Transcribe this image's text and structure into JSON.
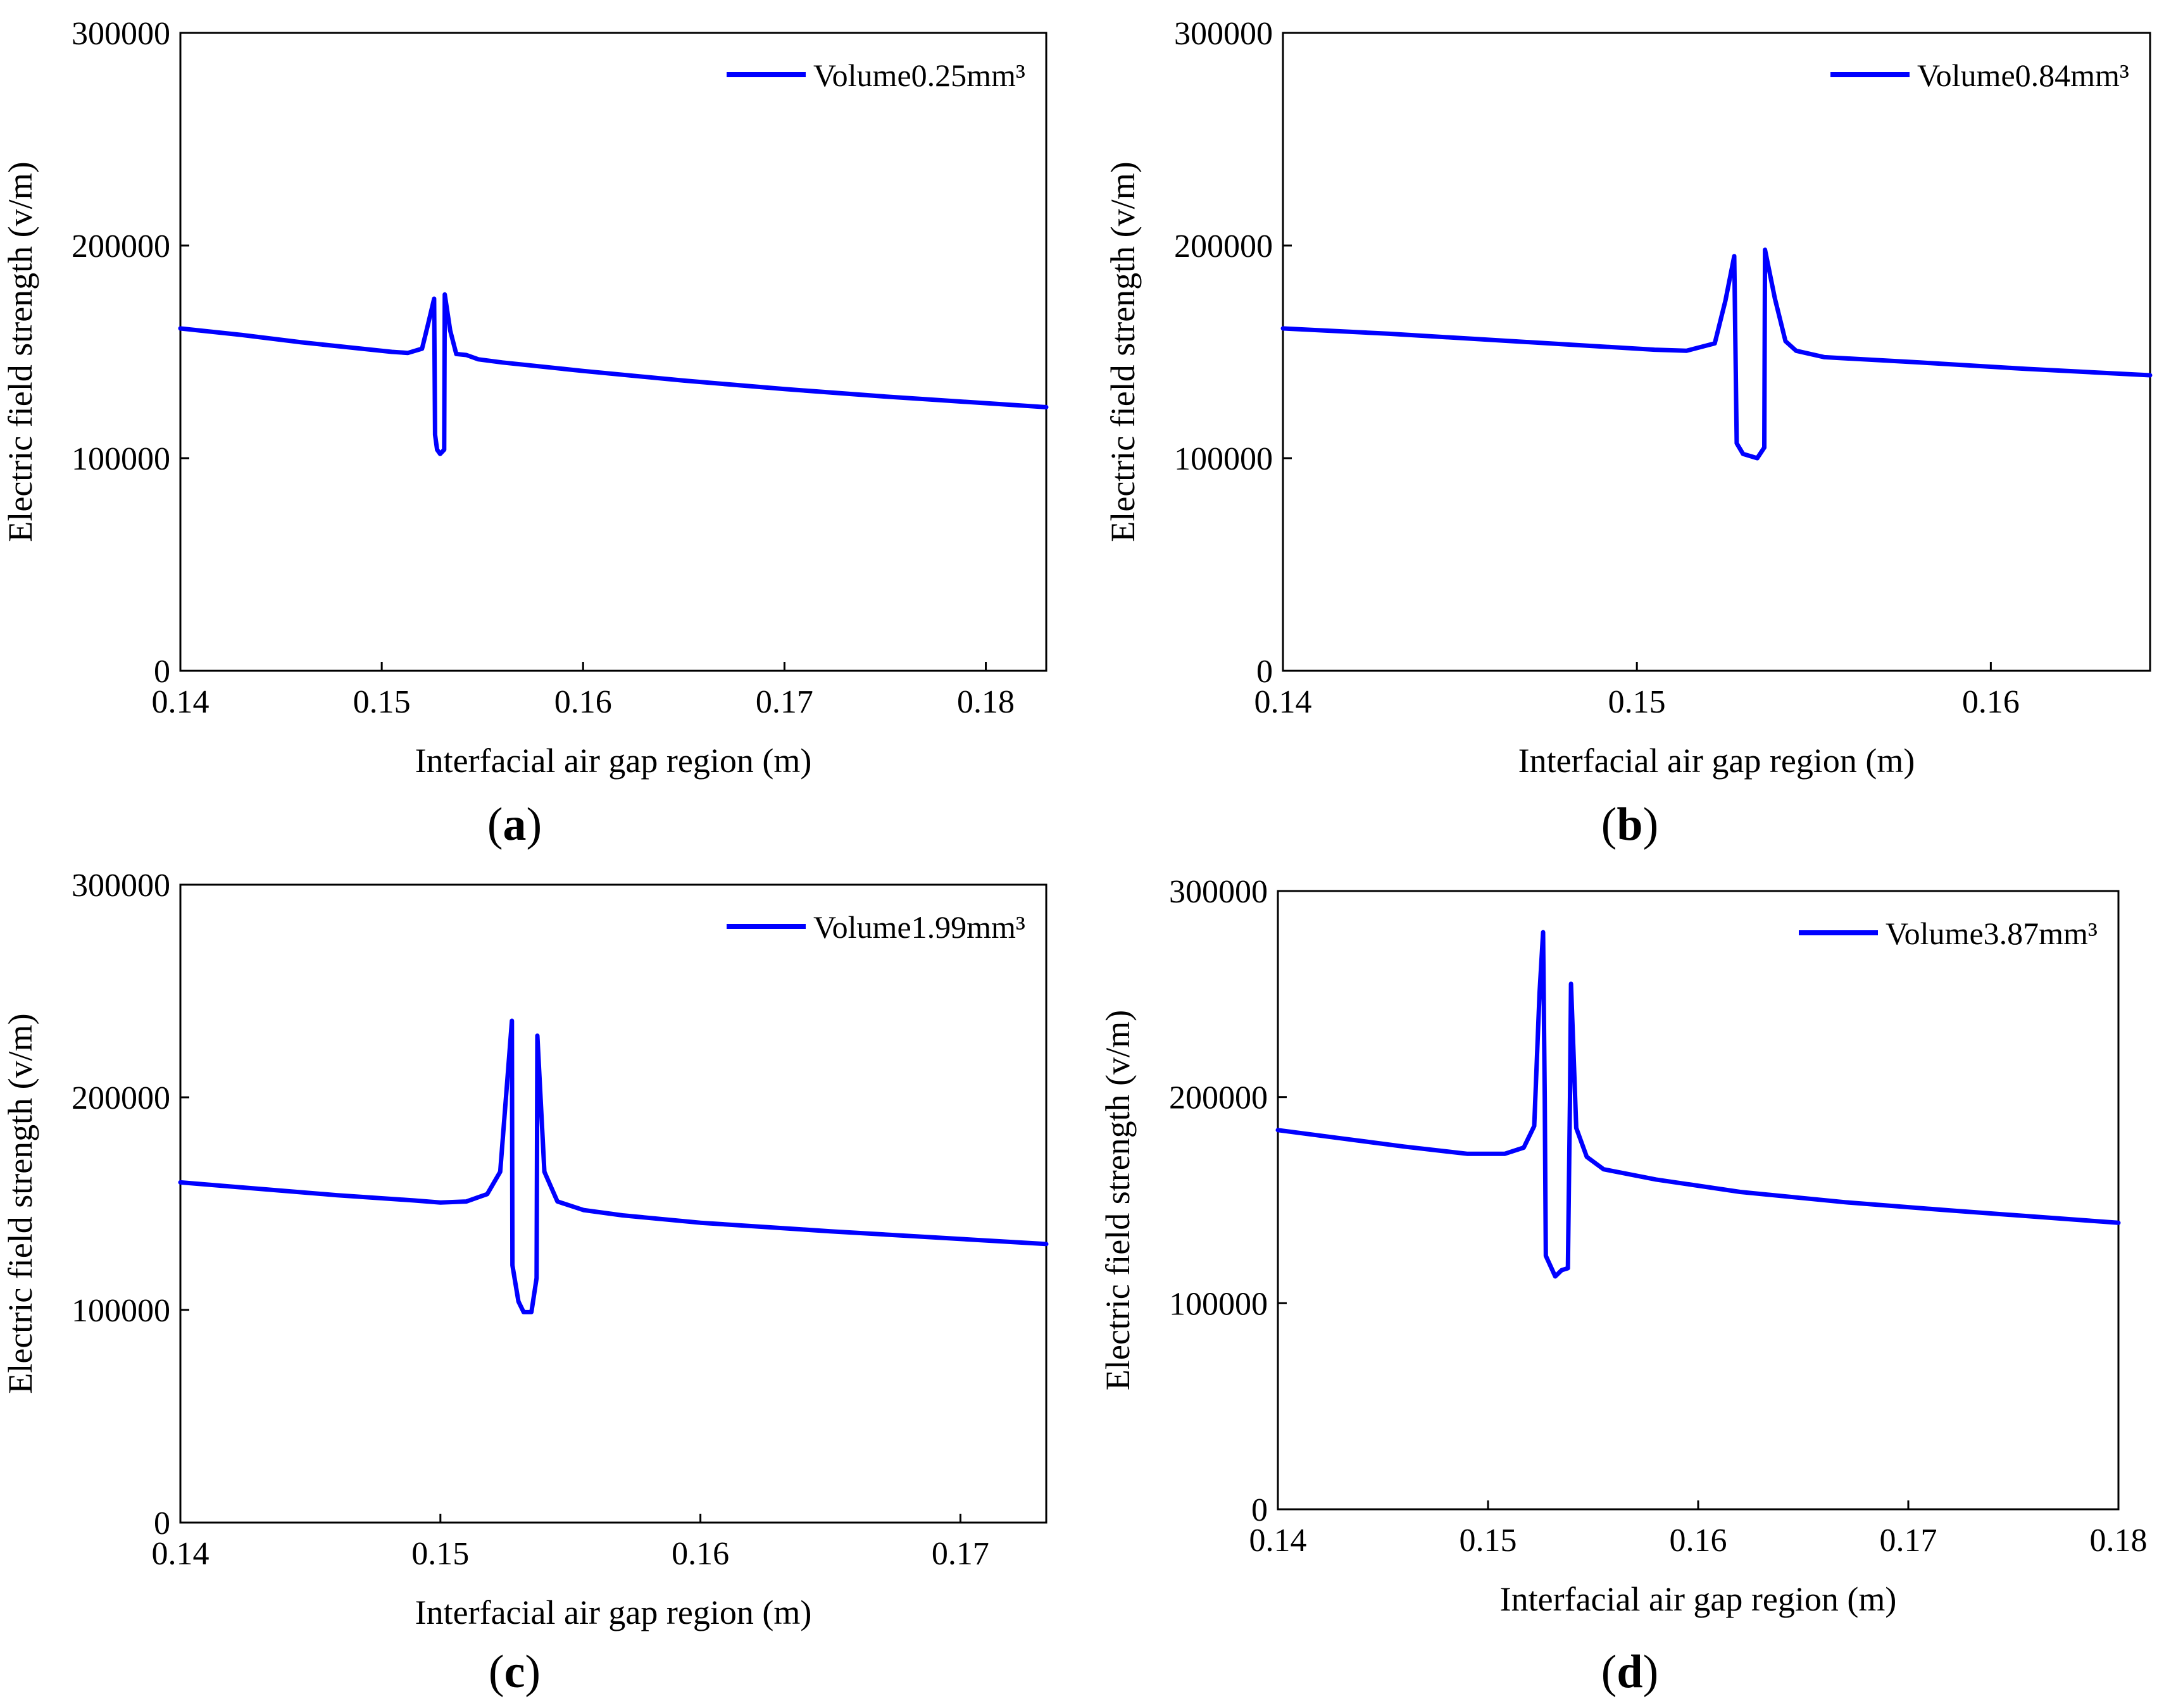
{
  "figure": {
    "panels": [
      {
        "id": "a",
        "caption_letter": "a"
      },
      {
        "id": "b",
        "caption_letter": "b"
      },
      {
        "id": "c",
        "caption_letter": "c"
      },
      {
        "id": "d",
        "caption_letter": "d"
      }
    ]
  },
  "chart_data": [
    {
      "id": "a",
      "type": "line",
      "title": "",
      "xlabel": "Interfacial air gap region (m)",
      "ylabel": "Electric field strength (v/m)",
      "xlim": [
        0.14,
        0.183
      ],
      "ylim": [
        0,
        300000
      ],
      "xticks": [
        0.14,
        0.15,
        0.16,
        0.17,
        0.18
      ],
      "xtick_labels": [
        "0.14",
        "0.15",
        "0.16",
        "0.17",
        "0.18"
      ],
      "yticks": [
        0,
        100000,
        200000,
        300000
      ],
      "ytick_labels": [
        "0",
        "100000",
        "200000",
        "300000"
      ],
      "legend_position": "top-right",
      "series": [
        {
          "name": "Volume0.25mm³",
          "color": "#0000ff",
          "x": [
            0.14,
            0.143,
            0.146,
            0.149,
            0.1505,
            0.1513,
            0.152,
            0.1523,
            0.1526,
            0.15265,
            0.15275,
            0.1529,
            0.1531,
            0.15313,
            0.1534,
            0.1537,
            0.1542,
            0.1548,
            0.156,
            0.16,
            0.165,
            0.17,
            0.175,
            0.183
          ],
          "y": [
            161000,
            158000,
            154500,
            151500,
            150000,
            149500,
            151500,
            163000,
            175000,
            111000,
            104000,
            102000,
            104000,
            177000,
            160000,
            149000,
            148500,
            146500,
            145000,
            141000,
            136500,
            132500,
            129000,
            124000
          ]
        }
      ]
    },
    {
      "id": "b",
      "type": "line",
      "title": "",
      "xlabel": "Interfacial air gap region (m)",
      "ylabel": "Electric field strength (v/m)",
      "xlim": [
        0.14,
        0.1645
      ],
      "ylim": [
        0,
        300000
      ],
      "xticks": [
        0.14,
        0.15,
        0.16
      ],
      "xtick_labels": [
        "0.14",
        "0.15",
        "0.16"
      ],
      "yticks": [
        0,
        100000,
        200000,
        300000
      ],
      "ytick_labels": [
        "0",
        "100000",
        "200000",
        "300000"
      ],
      "legend_position": "top-right",
      "series": [
        {
          "name": "Volume0.84mm³",
          "color": "#0000ff",
          "x": [
            0.14,
            0.143,
            0.146,
            0.149,
            0.1505,
            0.1514,
            0.1522,
            0.1525,
            0.15275,
            0.15282,
            0.153,
            0.1532,
            0.1534,
            0.1536,
            0.15362,
            0.1539,
            0.1542,
            0.1545,
            0.1553,
            0.158,
            0.161,
            0.1645
          ],
          "y": [
            161000,
            158500,
            155500,
            152500,
            151000,
            150500,
            154000,
            174000,
            195000,
            107000,
            102000,
            101000,
            100000,
            105000,
            198000,
            175000,
            155000,
            150500,
            147500,
            145000,
            142000,
            139000
          ]
        }
      ]
    },
    {
      "id": "c",
      "type": "line",
      "title": "",
      "xlabel": "Interfacial air gap region (m)",
      "ylabel": "Electric field strength (v/m)",
      "xlim": [
        0.14,
        0.1733
      ],
      "ylim": [
        0,
        300000
      ],
      "xticks": [
        0.14,
        0.15,
        0.16,
        0.17
      ],
      "xtick_labels": [
        "0.14",
        "0.15",
        "0.16",
        "0.17"
      ],
      "yticks": [
        0,
        100000,
        200000,
        300000
      ],
      "ytick_labels": [
        "0",
        "100000",
        "200000",
        "300000"
      ],
      "legend_position": "top-right",
      "series": [
        {
          "name": "Volume1.99mm³",
          "color": "#0000ff",
          "x": [
            0.14,
            0.143,
            0.146,
            0.149,
            0.15,
            0.151,
            0.1518,
            0.1523,
            0.15275,
            0.15277,
            0.153,
            0.1532,
            0.1535,
            0.1537,
            0.15373,
            0.154,
            0.1545,
            0.1555,
            0.157,
            0.16,
            0.165,
            0.1733
          ],
          "y": [
            160000,
            157000,
            154000,
            151500,
            150500,
            151000,
            154500,
            165000,
            236000,
            121000,
            104000,
            99000,
            99000,
            115000,
            229000,
            165000,
            151000,
            147000,
            144500,
            141000,
            137000,
            131000
          ]
        }
      ]
    },
    {
      "id": "d",
      "type": "line",
      "title": "",
      "xlabel": "Interfacial air gap region (m)",
      "ylabel": "Electric field strength (v/m)",
      "xlim": [
        0.14,
        0.18
      ],
      "ylim": [
        0,
        300000
      ],
      "xticks": [
        0.14,
        0.15,
        0.16,
        0.17,
        0.18
      ],
      "xtick_labels": [
        "0.14",
        "0.15",
        "0.16",
        "0.17",
        "0.18"
      ],
      "yticks": [
        0,
        100000,
        200000,
        300000
      ],
      "ytick_labels": [
        "0",
        "100000",
        "200000",
        "300000"
      ],
      "legend_position": "top-right",
      "series": [
        {
          "name": "Volume3.87mm³",
          "color": "#0000ff",
          "x": [
            0.14,
            0.143,
            0.146,
            0.149,
            0.1508,
            0.1517,
            0.1522,
            0.15245,
            0.15262,
            0.1527,
            0.15275,
            0.1532,
            0.1535,
            0.1538,
            0.1539,
            0.15395,
            0.1542,
            0.1547,
            0.1555,
            0.158,
            0.162,
            0.167,
            0.172,
            0.18
          ],
          "y": [
            184000,
            180000,
            176000,
            172500,
            172500,
            175500,
            186000,
            250000,
            280000,
            200000,
            123000,
            113000,
            116000,
            117000,
            200000,
            255000,
            185000,
            171000,
            165000,
            160000,
            154000,
            149000,
            145000,
            139000
          ]
        }
      ]
    }
  ]
}
